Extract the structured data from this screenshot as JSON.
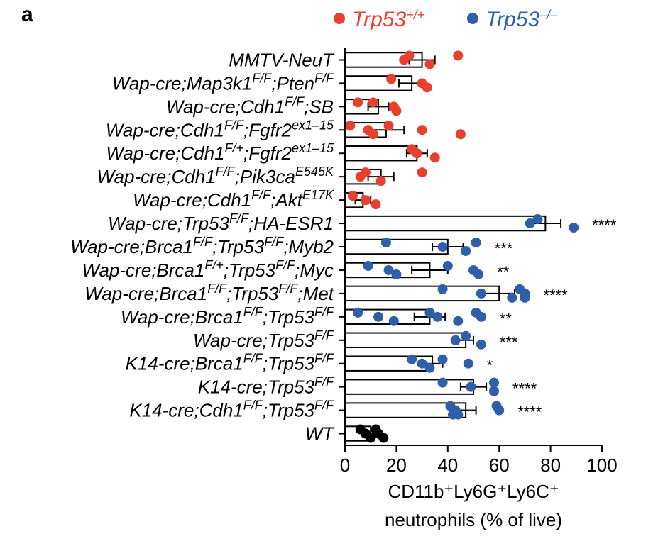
{
  "chart_data": {
    "type": "bar",
    "orientation": "horizontal",
    "panel_label": "a",
    "categories": [
      "MMTV-NeuT",
      "Wap-cre;Map3k1^F/F;Pten^F/F",
      "Wap-cre;Cdh1^F/F;SB",
      "Wap-cre;Cdh1^F/F;Fgfr2^ex1–15",
      "Wap-cre;Cdh1^F/+;Fgfr2^ex1–15",
      "Wap-cre;Cdh1^F/F;Pik3ca^E545K",
      "Wap-cre;Cdh1^F/F;Akt^E17K",
      "Wap-cre;Trp53^F/F;HA-ESR1",
      "Wap-cre;Brca1^F/F;Trp53^F/F;Myb2",
      "Wap-cre;Brca1^F/+;Trp53^F/F;Myc",
      "Wap-cre;Brca1^F/F;Trp53^F/F;Met",
      "Wap-cre;Brca1^F/F;Trp53^F/F",
      "Wap-cre;Trp53^F/F",
      "K14-cre;Brca1^F/F;Trp53^F/F",
      "K14-cre;Trp53^F/F",
      "K14-cre;Cdh1^F/F;Trp53^F/F",
      "WT"
    ],
    "group": [
      "p53wt",
      "p53wt",
      "p53wt",
      "p53wt",
      "p53wt",
      "p53wt",
      "p53wt",
      "p53ko",
      "p53ko",
      "p53ko",
      "p53ko",
      "p53ko",
      "p53ko",
      "p53ko",
      "p53ko",
      "p53ko",
      "wt"
    ],
    "values": [
      30,
      26,
      13,
      16,
      28,
      14,
      7,
      78,
      40,
      33,
      60,
      33,
      47,
      34,
      50,
      47,
      10
    ],
    "errors": [
      5,
      5,
      4,
      7,
      4,
      5,
      3,
      6,
      6,
      7,
      6,
      6,
      3,
      4,
      5,
      4,
      2
    ],
    "points": [
      [
        25,
        23,
        33,
        44
      ],
      [
        18,
        30,
        32
      ],
      [
        5,
        19,
        20,
        11
      ],
      [
        2,
        9,
        11,
        17,
        30,
        45
      ],
      [
        26,
        28,
        35
      ],
      [
        8,
        6,
        14,
        30
      ],
      [
        3,
        8,
        12
      ],
      [
        75,
        72,
        89
      ],
      [
        16,
        38,
        47,
        51
      ],
      [
        9,
        17,
        20,
        40,
        50,
        52
      ],
      [
        38,
        53,
        65,
        68,
        70,
        70
      ],
      [
        5,
        13,
        19,
        33,
        36,
        44,
        51,
        53
      ],
      [
        47,
        43,
        53
      ],
      [
        26,
        30,
        33,
        38,
        48
      ],
      [
        38,
        49,
        58,
        58
      ],
      [
        41,
        43,
        44,
        59,
        60,
        42
      ],
      [
        6,
        8,
        10,
        12,
        13,
        15
      ]
    ],
    "significance": [
      "",
      "",
      "",
      "",
      "",
      "",
      "",
      "****",
      "***",
      "**",
      "****",
      "**",
      "***",
      "*",
      "****",
      "****",
      ""
    ],
    "legend": [
      {
        "label": "Trp53^+/+",
        "color": "#e8402f"
      },
      {
        "label": "Trp53^–/–",
        "color": "#2f5fa8"
      }
    ],
    "wt_color": "#000000",
    "xlabel_line1": "CD11b⁺Ly6G⁺Ly6C⁺",
    "xlabel_line2": "neutrophils (% of live)",
    "xlim": [
      0,
      100
    ],
    "xticks": [
      0,
      20,
      40,
      60,
      80,
      100
    ],
    "legend_placement": "top",
    "grid": false
  }
}
